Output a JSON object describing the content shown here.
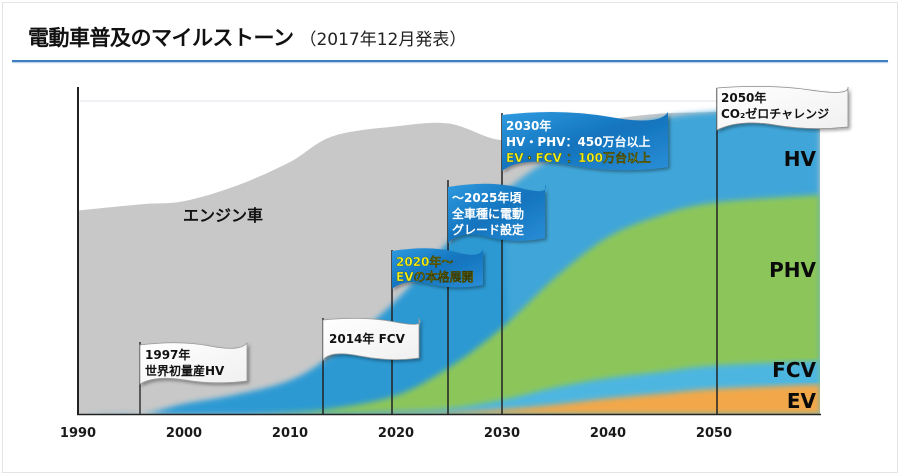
{
  "title": {
    "main": "電動車普及のマイルストーン",
    "sub": "（2017年12月発表）"
  },
  "colors": {
    "engine": "#c8c8c8",
    "hv": "#3fa6d9",
    "hv_dark": "#1e8fcf",
    "phv": "#8cc65a",
    "fcv": "#4eb6e0",
    "ev": "#f2a848",
    "flag_blue": "#1a7fc8",
    "flag_white": "#ffffff",
    "accent_yellow": "#f4f21a",
    "rule": "#3d7fc2"
  },
  "chart_data": {
    "type": "area",
    "title": "電動車普及のマイルストーン（2017年12月発表）",
    "xlabel": "",
    "ylabel": "",
    "xlim": [
      1990,
      2060
    ],
    "ylim": [
      0,
      100
    ],
    "x_ticks": [
      "1990",
      "2000",
      "2010",
      "2020",
      "2030",
      "2040",
      "2050"
    ],
    "grid": false,
    "stacking": "stacked share of vehicle sales (approximate, illustrative)",
    "x": [
      1990,
      1996,
      2000,
      2005,
      2010,
      2014,
      2020,
      2025,
      2030,
      2035,
      2040,
      2045,
      2050,
      2060
    ],
    "series": [
      {
        "name": "EV",
        "label": "EV",
        "values": [
          0,
          0,
          0,
          0,
          0,
          0,
          0.3,
          0.6,
          1.5,
          3,
          5,
          6.5,
          8,
          9.5
        ]
      },
      {
        "name": "FCV",
        "label": "FCV",
        "values": [
          0,
          0,
          0,
          0,
          0,
          0.2,
          0.6,
          1.2,
          3,
          5.5,
          6.5,
          7,
          7.5,
          7.5
        ]
      },
      {
        "name": "PHV",
        "label": "PHV",
        "values": [
          0,
          0,
          0,
          0,
          0.5,
          1.5,
          5,
          13,
          23,
          35,
          45,
          50,
          52,
          53
        ]
      },
      {
        "name": "HV",
        "label": "HV",
        "values": [
          0,
          0,
          3,
          6,
          10,
          17,
          30,
          40,
          43,
          39,
          34,
          31,
          29,
          28
        ]
      },
      {
        "name": "エンジン車",
        "label": "エンジン車",
        "values": [
          65,
          67,
          65,
          67,
          70,
          70,
          56,
          38,
          17,
          8,
          3.5,
          1.5,
          0,
          0
        ]
      }
    ],
    "milestones": [
      {
        "year": 1996,
        "lines": [
          "1997年",
          "世界初量産HV"
        ],
        "style": "white"
      },
      {
        "year": 2013.5,
        "lines": [
          "2014年  FCV"
        ],
        "style": "white"
      },
      {
        "year": 2020,
        "lines": [
          "2020年～",
          "EVの本格展開"
        ],
        "style": "blue-yellow"
      },
      {
        "year": 2025,
        "lines": [
          "～2025年頃",
          "全車種に電動",
          "グレード設定"
        ],
        "style": "blue"
      },
      {
        "year": 2030,
        "lines": [
          "2030年",
          "HV・PHV：450万台以上",
          "EV・FCV ：100万台以上"
        ],
        "style": "blue-mixed"
      },
      {
        "year": 2050,
        "lines": [
          "2050年",
          "CO₂ゼロチャレンジ"
        ],
        "style": "white"
      }
    ]
  },
  "labels": {
    "engine": "エンジン車",
    "hv": "HV",
    "phv": "PHV",
    "fcv": "FCV",
    "ev": "EV"
  },
  "flags": {
    "f1997": {
      "line1": "1997年",
      "line2": "世界初量産HV"
    },
    "f2014": {
      "line1": "2014年  FCV"
    },
    "f2020": {
      "line1": "2020年～",
      "line2": "EVの本格展開"
    },
    "f2025": {
      "line1": "～2025年頃",
      "line2": "全車種に電動",
      "line3": "グレード設定"
    },
    "f2030": {
      "line1": "2030年",
      "line2": "HV・PHV：450万台以上",
      "line3": "EV・FCV ：100万台以上"
    },
    "f2050": {
      "line1": "2050年",
      "line2": "CO₂ゼロチャレンジ"
    }
  }
}
